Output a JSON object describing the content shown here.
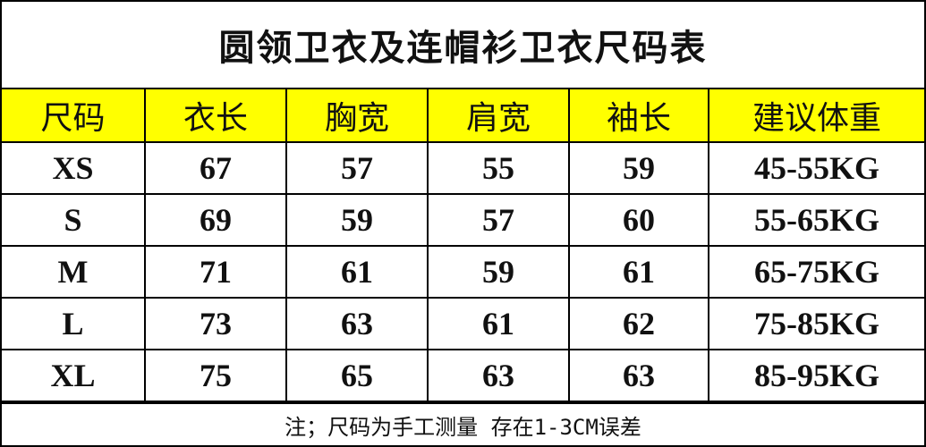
{
  "title": "圆领卫衣及连帽衫卫衣尺码表",
  "colors": {
    "header_bg": "#ffff00",
    "border": "#000000"
  },
  "headers": [
    "尺码",
    "衣长",
    "胸宽",
    "肩宽",
    "袖长",
    "建议体重"
  ],
  "rows": [
    [
      "XS",
      "67",
      "57",
      "55",
      "59",
      "45-55KG"
    ],
    [
      "S",
      "69",
      "59",
      "57",
      "60",
      "55-65KG"
    ],
    [
      "M",
      "71",
      "61",
      "59",
      "61",
      "65-75KG"
    ],
    [
      "L",
      "73",
      "63",
      "61",
      "62",
      "75-85KG"
    ],
    [
      "XL",
      "75",
      "65",
      "63",
      "63",
      "85-95KG"
    ]
  ],
  "note": "注；尺码为手工测量 存在1-3CM误差"
}
